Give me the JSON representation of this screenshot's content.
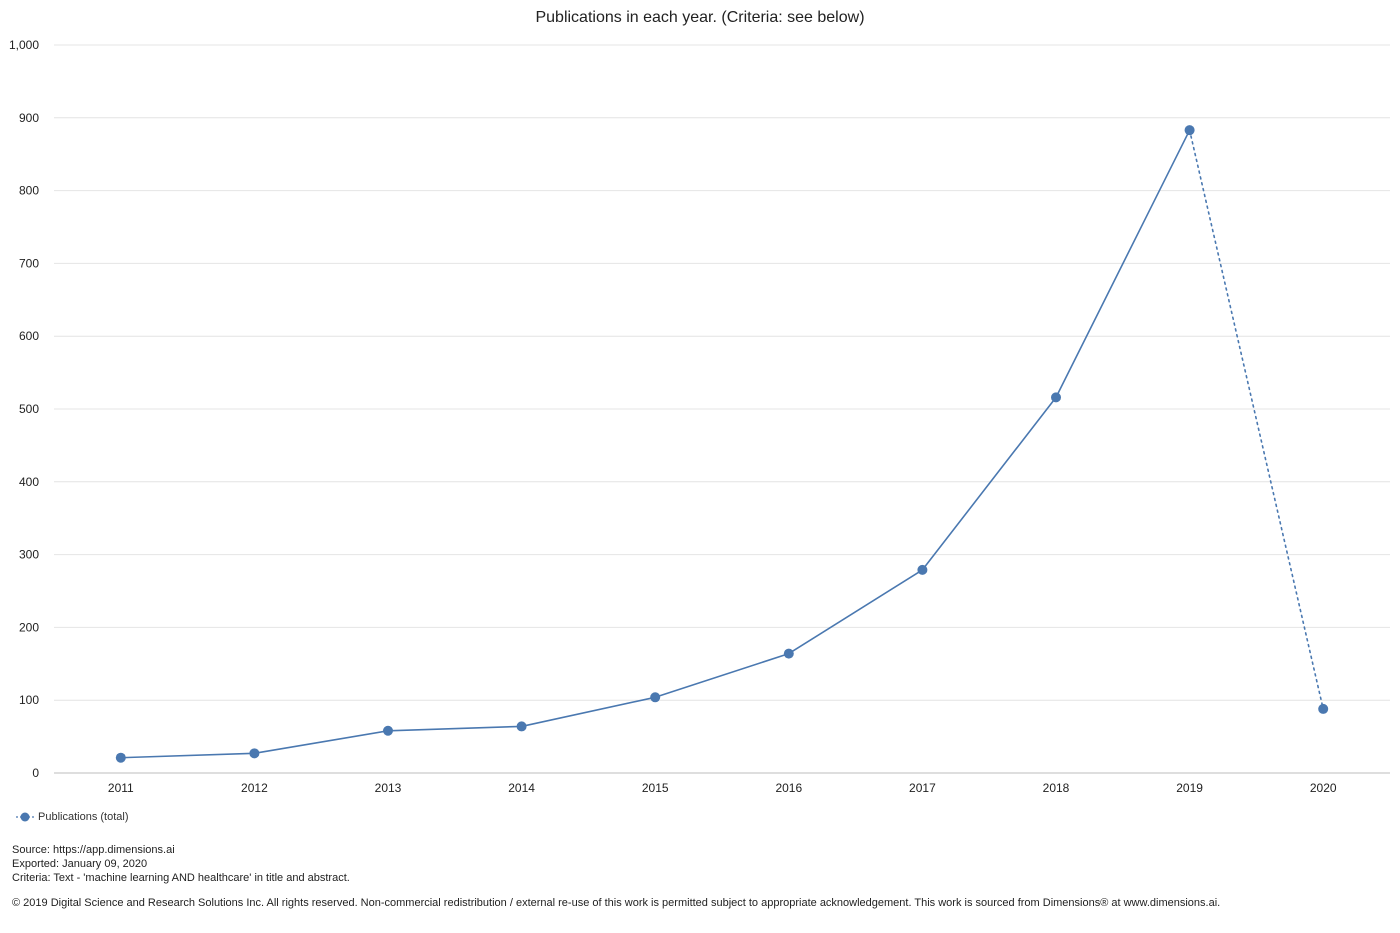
{
  "chart_data": {
    "type": "line",
    "title": "Publications in each year. (Criteria: see below)",
    "xlabel": "",
    "ylabel": "",
    "categories": [
      "2011",
      "2012",
      "2013",
      "2014",
      "2015",
      "2016",
      "2017",
      "2018",
      "2019",
      "2020"
    ],
    "series": [
      {
        "name": "Publications (total)",
        "values": [
          21,
          27,
          58,
          64,
          104,
          164,
          279,
          516,
          883,
          88
        ],
        "color": "#4a78b0",
        "incomplete_last_segment": true
      }
    ],
    "ylim": [
      0,
      1000
    ],
    "yticks": [
      0,
      100,
      200,
      300,
      400,
      500,
      600,
      700,
      800,
      900,
      1000
    ],
    "ytick_labels": [
      "0",
      "100",
      "200",
      "300",
      "400",
      "500",
      "600",
      "700",
      "800",
      "900",
      "1,000"
    ],
    "grid": true,
    "legend": "bottom-left"
  },
  "footer": {
    "source": "Source: https://app.dimensions.ai",
    "exported": "Exported: January 09, 2020",
    "criteria": "Criteria: Text - 'machine learning AND healthcare' in title and abstract.",
    "copyright": "© 2019 Digital Science and Research Solutions Inc. All rights reserved. Non-commercial redistribution / external re-use of this work is permitted subject to appropriate acknowledgement. This work is sourced from Dimensions® at www.dimensions.ai."
  }
}
